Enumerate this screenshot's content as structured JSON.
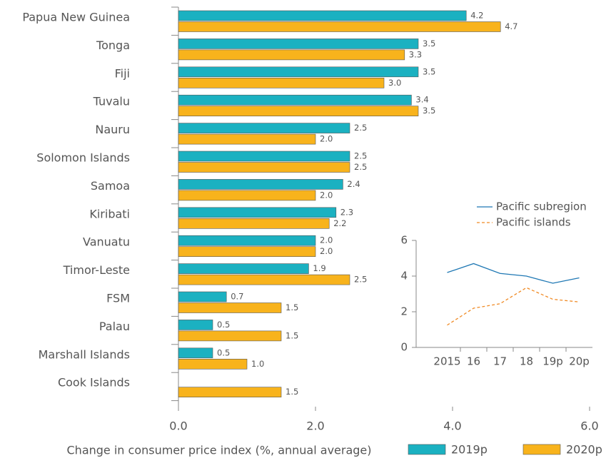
{
  "chart_data": [
    {
      "type": "hbar",
      "categories": [
        "Papua New Guinea",
        "Tonga",
        "Fiji",
        "Tuvalu",
        "Nauru",
        "Solomon Islands",
        "Samoa",
        "Kiribati",
        "Vanuatu",
        "Timor-Leste",
        "FSM",
        "Palau",
        "Marshall Islands",
        "Cook Islands"
      ],
      "series": [
        {
          "name": "2019p",
          "color": "#1bb1c1",
          "values": [
            4.2,
            3.5,
            3.5,
            3.4,
            2.5,
            2.5,
            2.4,
            2.3,
            2,
            1.9,
            0.7,
            0.5,
            0.5,
            null
          ],
          "value_labels": [
            "4.2",
            "3.5",
            "3.5",
            "3.4",
            "2.5",
            "2.5",
            "2.4",
            "2.3",
            "2.0",
            "1.9",
            "0.7",
            "0.5",
            "0.5",
            null
          ]
        },
        {
          "name": "2020p",
          "color": "#f8b31c",
          "values": [
            4.7,
            3.3,
            3,
            3.5,
            2,
            2.5,
            2,
            2.2,
            2,
            2.5,
            1.5,
            1.5,
            1,
            1.5
          ],
          "value_labels": [
            "4.7",
            "3.3",
            "3.0",
            "3.5",
            "2.0",
            "2.5",
            "2.0",
            "2.2",
            "2.0",
            "2.5",
            "1.5",
            "1.5",
            "1.0",
            "1.5"
          ]
        }
      ],
      "xlim": [
        0,
        6
      ],
      "xticks": [
        {
          "value": 0,
          "label": "0.0"
        },
        {
          "value": 2,
          "label": "2.0"
        },
        {
          "value": 4,
          "label": "4.0"
        },
        {
          "value": 6,
          "label": "6.0"
        }
      ],
      "x_label": "Change in consumer price index (%, annual average)",
      "legend": "bottom-right"
    },
    {
      "type": "line",
      "x": [
        "2015",
        "16",
        "17",
        "18",
        "19p",
        "20p"
      ],
      "series": [
        {
          "name": "Pacific subregion",
          "color": "#1f78b4",
          "dash": false,
          "values": [
            4.2,
            4.7,
            4.15,
            4.0,
            3.6,
            3.9
          ]
        },
        {
          "name": "Pacific islands",
          "color": "#f08a24",
          "dash": true,
          "values": [
            1.25,
            2.2,
            2.45,
            3.35,
            2.7,
            2.55
          ]
        }
      ],
      "ylim": [
        0,
        6
      ],
      "yticks": [
        0,
        2,
        4,
        6
      ],
      "legend": "top"
    }
  ]
}
